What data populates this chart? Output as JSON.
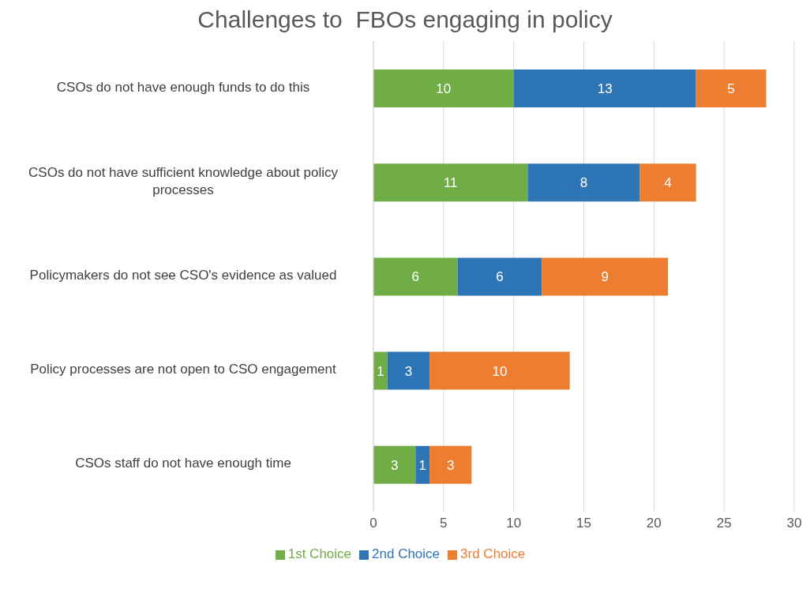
{
  "chart_data": {
    "type": "bar",
    "orientation": "horizontal",
    "stacked": true,
    "title": "Challenges to  FBOs engaging in policy",
    "categories": [
      "CSOs do not have enough funds to do this",
      "CSOs do not have sufficient knowledge about policy processes",
      "Policymakers do not see CSO's evidence as valued",
      "Policy processes are not open to CSO engagement",
      "CSOs staff do not have enough time"
    ],
    "series": [
      {
        "name": "1st Choice",
        "color": "#70ad47",
        "values": [
          10,
          11,
          6,
          1,
          3
        ]
      },
      {
        "name": "2nd Choice",
        "color": "#2e75b6",
        "values": [
          13,
          8,
          6,
          3,
          1
        ]
      },
      {
        "name": "3rd Choice",
        "color": "#ed7d31",
        "values": [
          5,
          4,
          9,
          10,
          3
        ]
      }
    ],
    "xlim": [
      0,
      30
    ],
    "xticks": [
      0,
      5,
      10,
      15,
      20,
      25,
      30
    ],
    "grid": "x",
    "legend": "bottom",
    "data_labels": true
  }
}
